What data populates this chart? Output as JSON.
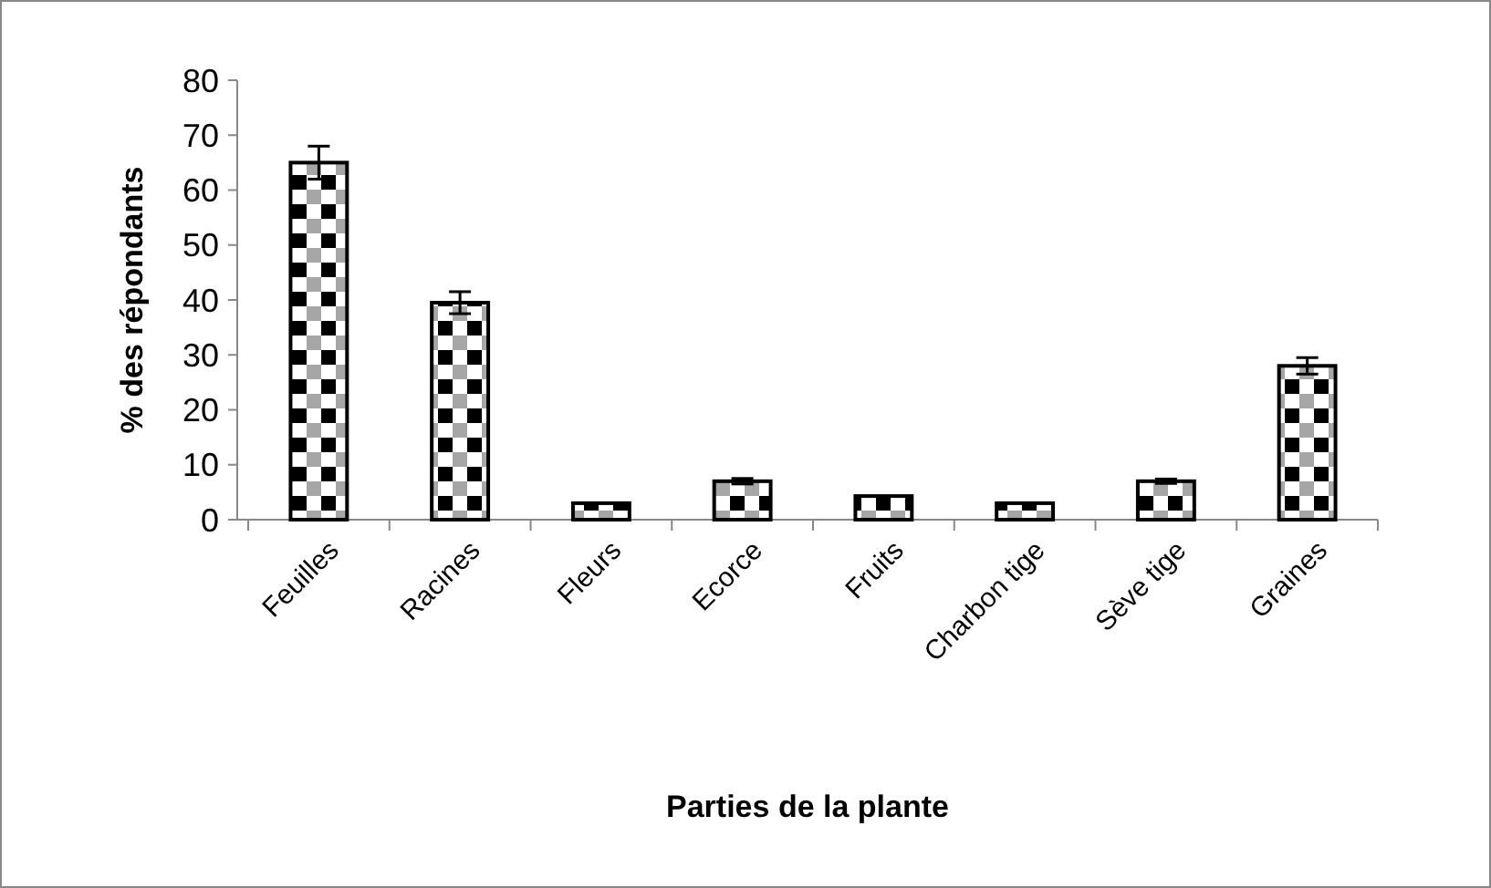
{
  "chart_data": {
    "type": "bar",
    "xlabel": "Parties de la plante",
    "ylabel": "% des répondants",
    "categories": [
      "Feuilles",
      "Racines",
      "Fleurs",
      "Ecorce",
      "Fruits",
      "Charbon tige",
      "Sève tige",
      "Graines"
    ],
    "values": [
      65,
      39.5,
      3,
      7,
      4.3,
      3,
      7,
      28
    ],
    "errors": [
      3,
      2,
      null,
      0.5,
      null,
      null,
      0.4,
      1.5
    ],
    "color": "#000000",
    "ylim": [
      0,
      80
    ],
    "yticks": [
      0,
      10,
      20,
      30,
      40,
      50,
      60,
      70,
      80
    ],
    "grid": false
  }
}
